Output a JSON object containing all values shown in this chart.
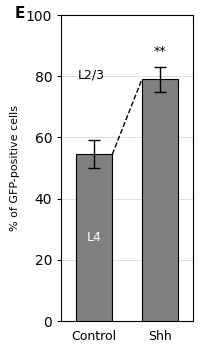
{
  "title": "E",
  "categories": [
    "Control",
    "Shh"
  ],
  "bar_values": [
    54.5,
    79.0
  ],
  "bar_errors": [
    4.5,
    4.0
  ],
  "bar_color": "#808080",
  "ylabel": "% of GFP-positive cells",
  "ylim": [
    0,
    100
  ],
  "yticks": [
    0,
    20,
    40,
    60,
    80,
    100
  ],
  "label_L4": "L4",
  "label_L23": "L2/3",
  "significance": "**",
  "fig_width": 2.0,
  "fig_height": 3.5,
  "background_color": "#ffffff"
}
